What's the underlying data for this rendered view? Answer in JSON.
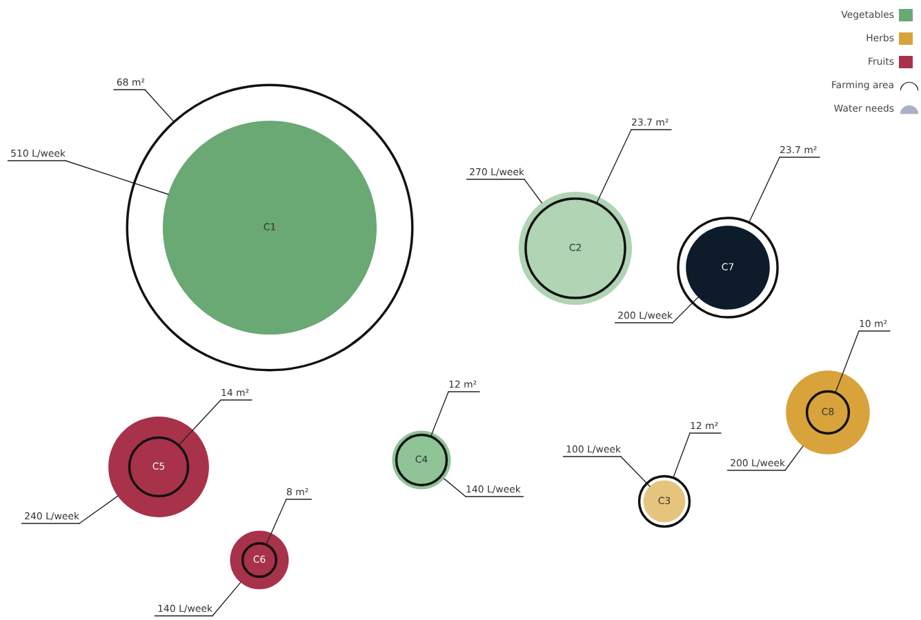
{
  "chart_data": {
    "type": "other",
    "legend": "top right",
    "annotations": [
      "Water needs"
    ],
    "categories": [
      "C1",
      "C2",
      "C3",
      "C4",
      "C5",
      "C6",
      "C7",
      "C8"
    ],
    "series": [
      {
        "name": "Vegetables",
        "type": "bubble",
        "color": "#6aa874",
        "values": [
          510,
          270,
          null,
          140,
          null,
          null,
          200,
          null
        ],
        "colors": [
          "#6aa874",
          "#b0d4b4",
          null,
          "#8fc497",
          null,
          null,
          "#0d1b2a",
          null
        ],
        "value_labels": [
          "510 L/week",
          "270 L/week",
          null,
          "140 L/week",
          null,
          null,
          "200 L/week",
          null
        ]
      },
      {
        "name": "Herbs",
        "type": "bubble",
        "color": "#d8a33a",
        "values": [
          null,
          null,
          100,
          null,
          null,
          null,
          null,
          200
        ],
        "colors": [
          null,
          null,
          "#e6c47e",
          null,
          null,
          null,
          null,
          "#d8a33a"
        ],
        "value_labels": [
          null,
          null,
          "100 L/week",
          null,
          null,
          null,
          null,
          "200 L/week"
        ]
      },
      {
        "name": "Fruits",
        "type": "bubble",
        "color": "#a8324a",
        "values": [
          null,
          null,
          null,
          null,
          240,
          140,
          null,
          null
        ],
        "colors": [
          null,
          null,
          null,
          null,
          "#a8324a",
          "#a8324a",
          null,
          null
        ],
        "value_labels": [
          null,
          null,
          null,
          null,
          "240 L/week",
          "140 L/week",
          null,
          null
        ]
      },
      {
        "name": "Farming area",
        "type": "other",
        "color": "#111111",
        "values": [
          68,
          23.7,
          12,
          12,
          14,
          8,
          23.7,
          10
        ],
        "value_labels": [
          "68 m²",
          "23.7 m²",
          "12 m²",
          "12 m²",
          "14 m²",
          "8 m²",
          "23.7 m²",
          "10 m²"
        ]
      }
    ]
  }
}
